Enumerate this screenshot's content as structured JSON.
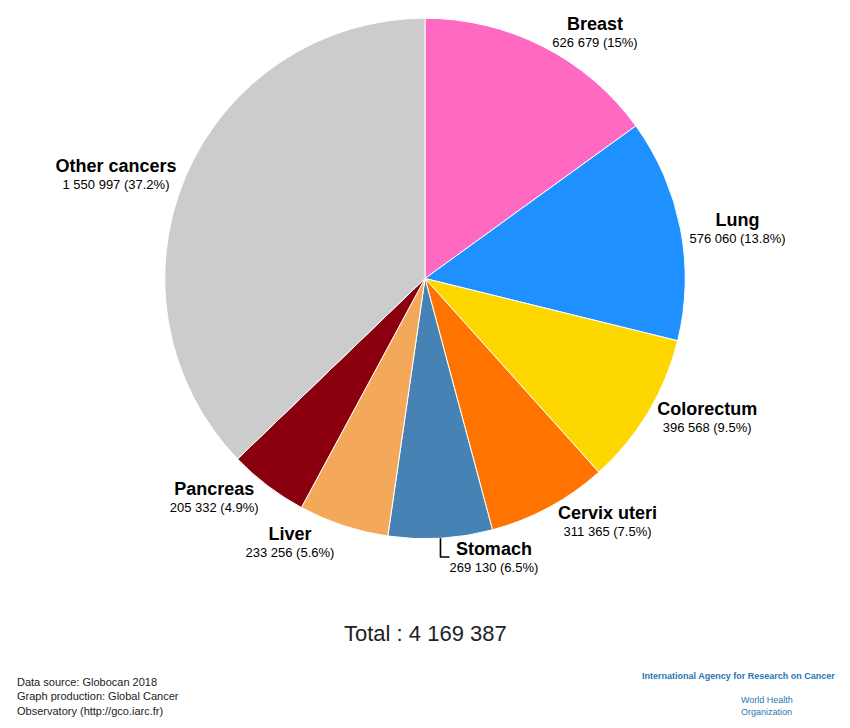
{
  "chart_data": {
    "type": "pie",
    "categories": [
      "Breast",
      "Lung",
      "Colorectum",
      "Cervix uteri",
      "Stomach",
      "Liver",
      "Pancreas",
      "Other cancers"
    ],
    "values": [
      626679,
      576060,
      396568,
      311365,
      269130,
      233256,
      205332,
      1550997
    ],
    "value_labels": [
      "626 679 (15%)",
      "576 060 (13.8%)",
      "396 568 (9.5%)",
      "311 365 (7.5%)",
      "269 130 (6.5%)",
      "233 256 (5.6%)",
      "205 332 (4.9%)",
      "1 550 997 (37.2%)"
    ],
    "colors": [
      "#ff69c2",
      "#1e90ff",
      "#ffd700",
      "#ff7400",
      "#4682b4",
      "#f4a95a",
      "#8b000f",
      "#cccccc"
    ],
    "data_labels": true,
    "annotations": [
      "Total : 4 169 387"
    ],
    "source": [
      "Data source: Globocan 2018",
      "Graph production: Global Cancer",
      "Observatory (http://gco.iarc.fr)"
    ],
    "logo": [
      "International Agency for Research on Cancer",
      "World Health",
      "Organization"
    ]
  }
}
